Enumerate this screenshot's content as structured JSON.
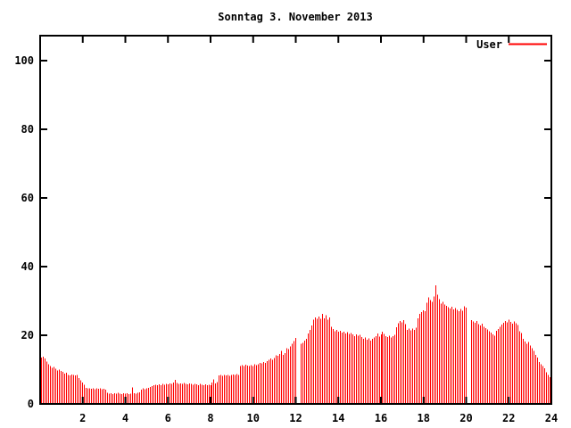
{
  "title": "Sonntag 3. November 2013",
  "legend": {
    "label": "User",
    "sample_color": "#ff0000",
    "position": "top-right-inside"
  },
  "colors": {
    "bars": "#ff0000",
    "axis": "#000000",
    "background": "#ffffff",
    "text": "#000000"
  },
  "chart_data": {
    "type": "bar",
    "style": "impulses",
    "title": "Sonntag 3. November 2013",
    "xlabel": "",
    "ylabel": "",
    "grid": false,
    "legend_position": "top-right-inside",
    "xlim": [
      0,
      24
    ],
    "ylim": [
      0,
      107
    ],
    "x_ticks": [
      2,
      4,
      6,
      8,
      10,
      12,
      14,
      16,
      18,
      20,
      22,
      24
    ],
    "y_ticks": [
      0,
      20,
      40,
      60,
      80,
      100
    ],
    "x_unit": "hour_of_day",
    "sample_interval_minutes": 5,
    "notes": "values of 0 render as white gaps (missing samples) just after 12:00 and 20:00",
    "series": [
      {
        "name": "User",
        "color": "#ff0000",
        "values": [
          13.5,
          13.8,
          13.2,
          12.4,
          11.5,
          11.0,
          10.5,
          10.8,
          10.2,
          9.8,
          10.0,
          9.6,
          9.3,
          8.8,
          9.1,
          8.5,
          8.3,
          8.6,
          8.4,
          8.3,
          8.5,
          7.5,
          6.9,
          6.2,
          5.6,
          4.7,
          4.5,
          4.6,
          4.4,
          4.5,
          4.3,
          4.6,
          4.4,
          4.5,
          4.3,
          4.4,
          4.2,
          3.2,
          3.0,
          3.1,
          2.9,
          3.1,
          3.0,
          3.2,
          3.0,
          2.9,
          3.1,
          3.0,
          3.1,
          2.9,
          3.0,
          4.8,
          3.1,
          3.0,
          3.2,
          3.4,
          4.2,
          4.5,
          4.3,
          4.6,
          4.7,
          4.9,
          5.2,
          5.5,
          5.6,
          5.4,
          5.7,
          5.5,
          5.8,
          5.6,
          5.9,
          5.7,
          6.0,
          5.8,
          6.2,
          7.0,
          6.1,
          5.9,
          6.0,
          5.8,
          6.1,
          5.9,
          5.7,
          6.0,
          5.8,
          5.6,
          5.9,
          5.7,
          5.5,
          5.8,
          5.6,
          5.4,
          5.7,
          5.5,
          5.6,
          5.4,
          6.2,
          7.2,
          6.0,
          6.3,
          8.3,
          8.5,
          8.2,
          8.4,
          8.3,
          8.5,
          8.2,
          8.4,
          8.6,
          8.4,
          8.7,
          8.5,
          11.0,
          11.3,
          11.1,
          11.4,
          11.2,
          11.0,
          11.3,
          11.1,
          11.5,
          11.3,
          11.6,
          12.0,
          11.8,
          12.2,
          11.9,
          12.5,
          12.8,
          13.2,
          12.9,
          13.4,
          14.2,
          14.0,
          14.5,
          15.5,
          14.3,
          14.8,
          16.2,
          16.0,
          16.8,
          17.5,
          18.3,
          19.2,
          0,
          0,
          17.5,
          17.8,
          18.5,
          19.0,
          20.5,
          21.5,
          22.8,
          24.5,
          25.2,
          24.8,
          25.5,
          24.8,
          26.2,
          25.0,
          25.8,
          24.5,
          25.2,
          22.5,
          21.8,
          21.2,
          21.5,
          21.0,
          21.3,
          20.8,
          21.1,
          20.5,
          20.9,
          20.4,
          20.7,
          20.2,
          19.8,
          20.3,
          19.9,
          20.1,
          19.5,
          19.0,
          19.3,
          18.7,
          19.1,
          18.5,
          18.9,
          19.4,
          19.8,
          20.5,
          19.6,
          20.2,
          21.0,
          20.4,
          19.8,
          19.5,
          19.9,
          19.4,
          19.7,
          20.1,
          22.3,
          23.5,
          24.2,
          23.8,
          24.4,
          23.2,
          21.5,
          21.9,
          21.4,
          22.0,
          21.6,
          22.2,
          25.0,
          26.2,
          26.8,
          27.3,
          27.0,
          29.5,
          31.0,
          30.2,
          29.8,
          31.3,
          34.5,
          31.8,
          30.5,
          29.2,
          29.8,
          29.0,
          28.6,
          28.2,
          27.8,
          28.3,
          27.5,
          27.9,
          27.4,
          27.0,
          27.6,
          27.2,
          28.4,
          28.0,
          0,
          0,
          24.4,
          24.0,
          23.6,
          24.2,
          23.3,
          22.9,
          23.4,
          22.5,
          22.1,
          21.7,
          21.2,
          20.8,
          20.3,
          19.9,
          21.3,
          21.8,
          22.5,
          23.1,
          23.6,
          24.2,
          23.8,
          24.5,
          23.9,
          23.4,
          24.0,
          23.5,
          23.0,
          21.2,
          20.6,
          19.0,
          18.2,
          17.5,
          18.0,
          17.0,
          16.2,
          15.5,
          14.3,
          13.5,
          12.2,
          11.5,
          11.0,
          10.4,
          9.2,
          8.4,
          7.8,
          6.5
        ]
      }
    ]
  }
}
